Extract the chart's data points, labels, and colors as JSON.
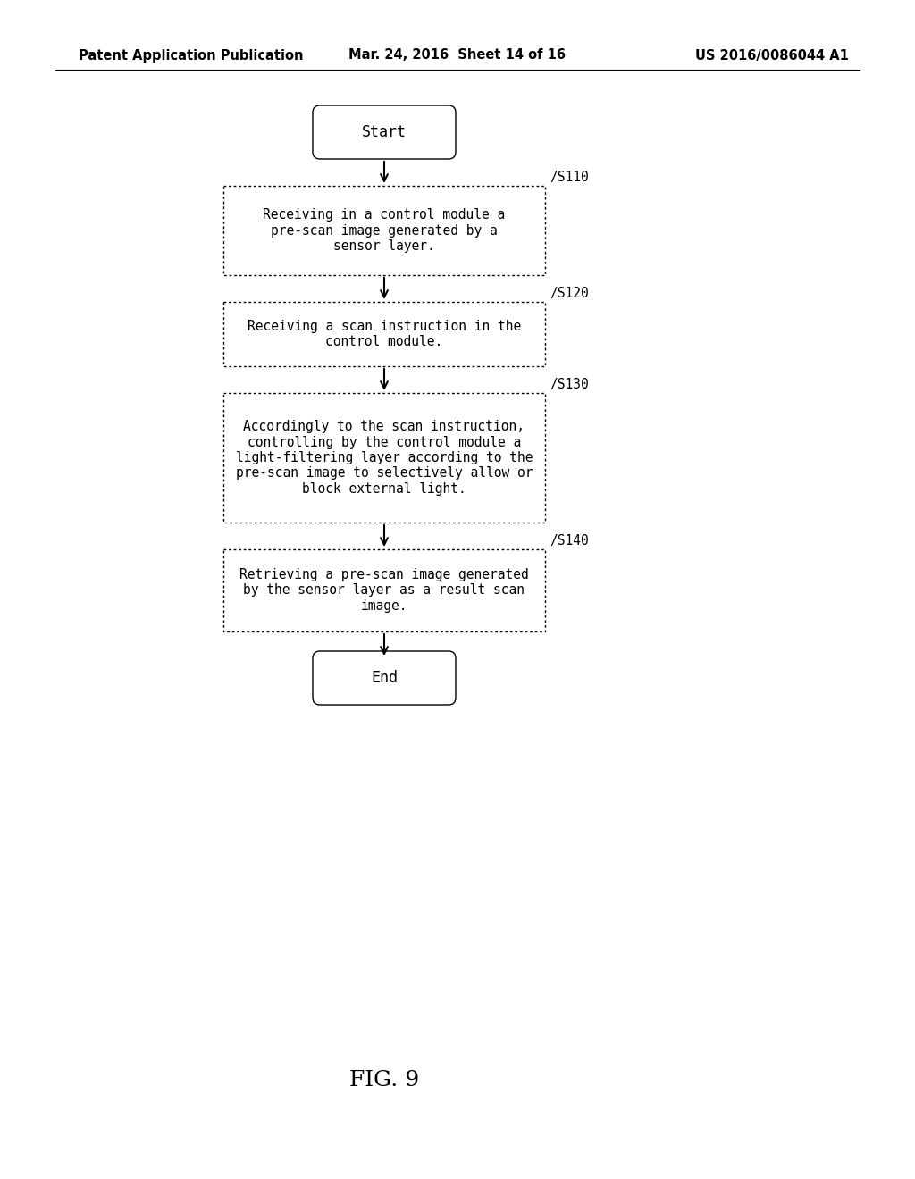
{
  "background_color": "#ffffff",
  "header_left": "Patent Application Publication",
  "header_mid": "Mar. 24, 2016  Sheet 14 of 16",
  "header_right": "US 2016/0086044 A1",
  "header_fontsize": 10.5,
  "figure_label": "FIG. 9",
  "figure_label_fontsize": 18,
  "start_label": "Start",
  "end_label": "End",
  "steps": [
    {
      "label": "S110",
      "text": "Receiving in a control module a\npre-scan image generated by a\nsensor layer."
    },
    {
      "label": "S120",
      "text": "Receiving a scan instruction in the\ncontrol module."
    },
    {
      "label": "S130",
      "text": "Accordingly to the scan instruction,\ncontrolling by the control module a\nlight-filtering layer according to the\npre-scan image to selectively allow or\nblock external light."
    },
    {
      "label": "S140",
      "text": "Retrieving a pre-scan image generated\nby the sensor layer as a result scan\nimage."
    }
  ],
  "box_edge_color": "#000000",
  "box_face_color": "#ffffff",
  "text_color": "#000000",
  "arrow_color": "#000000",
  "text_fontsize": 10.5,
  "label_fontsize": 10.5,
  "terminal_fontsize": 12
}
